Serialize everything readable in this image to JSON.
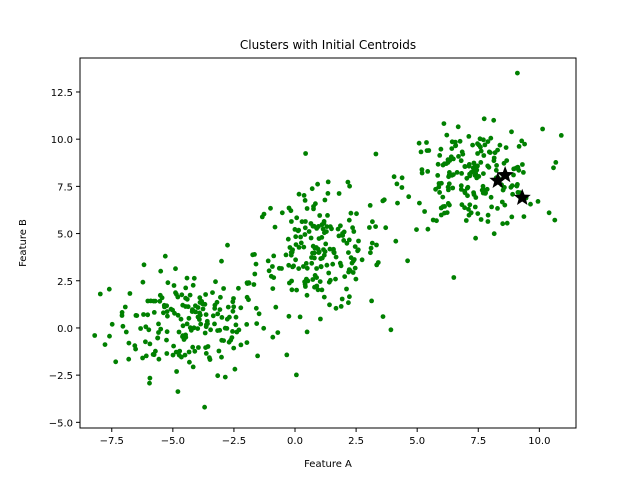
{
  "chart_data": {
    "type": "scatter",
    "title": "Clusters with Initial Centroids",
    "xlabel": "Feature A",
    "ylabel": "Feature B",
    "xlim": [
      -8.8,
      11.5
    ],
    "ylim": [
      -5.3,
      14.3
    ],
    "x_ticks": [
      -7.5,
      -5.0,
      -2.5,
      0.0,
      2.5,
      5.0,
      7.5,
      10.0
    ],
    "x_tick_labels": [
      "−7.5",
      "−5.0",
      "−2.5",
      "0.0",
      "2.5",
      "5.0",
      "7.5",
      "10.0"
    ],
    "y_ticks": [
      -5.0,
      -2.5,
      0.0,
      2.5,
      5.0,
      7.5,
      10.0,
      12.5
    ],
    "y_tick_labels": [
      "−5.0",
      "−2.5",
      "0.0",
      "2.5",
      "5.0",
      "7.5",
      "10.0",
      "12.5"
    ],
    "grid": false,
    "legend": "none",
    "point_color": "#008000",
    "centroid_color": "#000000",
    "clusters": [
      {
        "center": [
          -4.3,
          0.3
        ],
        "spread_x": 1.6,
        "spread_y": 1.4,
        "count": 200
      },
      {
        "center": [
          1.0,
          4.0
        ],
        "spread_x": 1.3,
        "spread_y": 1.6,
        "count": 200
      },
      {
        "center": [
          7.3,
          7.9
        ],
        "spread_x": 1.4,
        "spread_y": 1.3,
        "count": 200
      }
    ],
    "outliers": [
      {
        "x": -8.2,
        "y": -0.4
      },
      {
        "x": -3.7,
        "y": -4.2
      },
      {
        "x": 9.1,
        "y": 13.5
      },
      {
        "x": 10.9,
        "y": 10.2
      },
      {
        "x": 3.6,
        "y": 0.6
      },
      {
        "x": 10.4,
        "y": 6.1
      }
    ],
    "centroids": [
      {
        "x": 8.3,
        "y": 7.8
      },
      {
        "x": 8.6,
        "y": 8.1
      },
      {
        "x": 9.3,
        "y": 6.9
      }
    ]
  }
}
